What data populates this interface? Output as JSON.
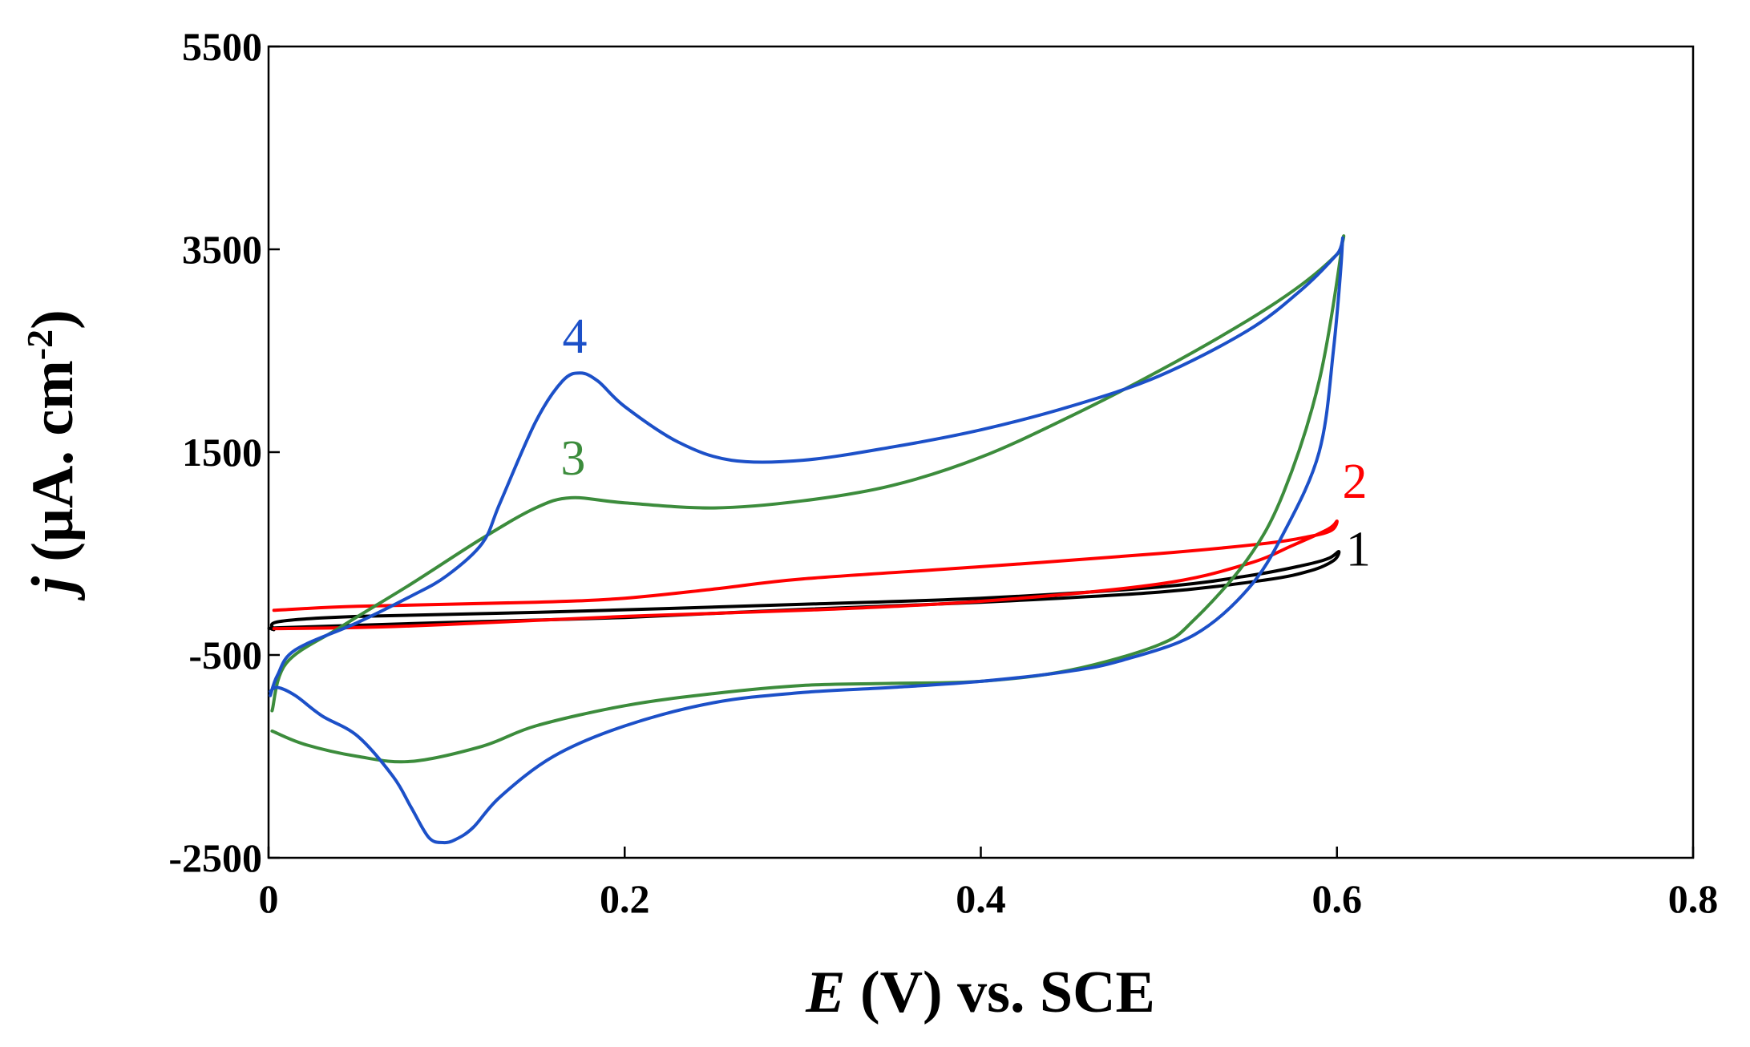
{
  "chart_data": {
    "type": "line",
    "title": "",
    "xlabel": {
      "var": "E",
      "rest": " (V) vs. SCE"
    },
    "ylabel": {
      "var": "j",
      "rest": " (μA. cm",
      "sup": "-2",
      "close": ")"
    },
    "xlim": [
      0,
      0.8
    ],
    "ylim": [
      -2500,
      5500
    ],
    "xticks": [
      0,
      0.2,
      0.4,
      0.6,
      0.8
    ],
    "xtick_labels": [
      "0",
      "0.2",
      "0.4",
      "0.6",
      "0.8"
    ],
    "yticks": [
      -2500,
      -500,
      1500,
      3500,
      5500
    ],
    "ytick_labels": [
      "-2500",
      "-500",
      "1500",
      "3500",
      "5500"
    ],
    "grid": false,
    "series": [
      {
        "name": "1",
        "color": "#000000",
        "x": [
          0.003,
          0.006,
          0.05,
          0.15,
          0.3,
          0.4,
          0.5,
          0.55,
          0.58,
          0.595,
          0.601,
          0.598,
          0.585,
          0.56,
          0.5,
          0.4,
          0.3,
          0.2,
          0.1,
          0.01,
          0.002,
          0.003
        ],
        "y": [
          -250,
          -170,
          -120,
          -80,
          0,
          60,
          170,
          280,
          380,
          450,
          520,
          430,
          330,
          240,
          120,
          20,
          -50,
          -130,
          -180,
          -230,
          -240,
          -250
        ]
      },
      {
        "name": "2",
        "color": "#ff0000",
        "x": [
          0.003,
          0.05,
          0.15,
          0.2,
          0.25,
          0.3,
          0.4,
          0.5,
          0.56,
          0.585,
          0.597,
          0.6,
          0.595,
          0.575,
          0.55,
          0.5,
          0.4,
          0.3,
          0.2,
          0.1,
          0.05,
          0.003
        ],
        "y": [
          -60,
          -20,
          20,
          60,
          150,
          250,
          370,
          500,
          600,
          670,
          730,
          820,
          740,
          580,
          400,
          200,
          30,
          -60,
          -120,
          -200,
          -230,
          -240
        ]
      },
      {
        "name": "3",
        "color": "#3c8c3c",
        "x": [
          0.002,
          0.01,
          0.04,
          0.08,
          0.12,
          0.15,
          0.17,
          0.2,
          0.25,
          0.3,
          0.35,
          0.4,
          0.45,
          0.5,
          0.55,
          0.58,
          0.6,
          0.603,
          0.59,
          0.57,
          0.55,
          0.52,
          0.5,
          0.45,
          0.4,
          0.35,
          0.3,
          0.25,
          0.2,
          0.15,
          0.12,
          0.08,
          0.05,
          0.02,
          0.002
        ],
        "y": [
          -1050,
          -580,
          -230,
          200,
          650,
          950,
          1050,
          1000,
          950,
          1020,
          1170,
          1450,
          1850,
          2300,
          2800,
          3150,
          3450,
          3550,
          2200,
          1100,
          450,
          -150,
          -400,
          -650,
          -760,
          -780,
          -800,
          -880,
          -1000,
          -1200,
          -1400,
          -1550,
          -1500,
          -1380,
          -1250
        ]
      },
      {
        "name": "4",
        "color": "#1c50c8",
        "x": [
          0.001,
          0.005,
          0.015,
          0.05,
          0.08,
          0.1,
          0.12,
          0.13,
          0.15,
          0.165,
          0.175,
          0.185,
          0.2,
          0.23,
          0.26,
          0.3,
          0.35,
          0.4,
          0.45,
          0.5,
          0.55,
          0.58,
          0.6,
          0.603,
          0.598,
          0.59,
          0.57,
          0.55,
          0.52,
          0.48,
          0.45,
          0.4,
          0.35,
          0.3,
          0.25,
          0.2,
          0.16,
          0.13,
          0.115,
          0.105,
          0.098,
          0.09,
          0.08,
          0.07,
          0.05,
          0.03,
          0.015,
          0.005,
          0.001
        ],
        "y": [
          -900,
          -700,
          -450,
          -180,
          80,
          280,
          600,
          1000,
          1800,
          2200,
          2280,
          2200,
          1950,
          1600,
          1420,
          1420,
          1550,
          1720,
          1950,
          2250,
          2700,
          3100,
          3450,
          3550,
          2500,
          1500,
          700,
          150,
          -300,
          -550,
          -660,
          -760,
          -820,
          -870,
          -970,
          -1200,
          -1500,
          -1900,
          -2200,
          -2320,
          -2350,
          -2300,
          -2000,
          -1700,
          -1300,
          -1100,
          -900,
          -820,
          -860
        ]
      }
    ],
    "annotations": [
      {
        "text": "1",
        "x": 0.612,
        "y": 380,
        "color": "#000000"
      },
      {
        "text": "2",
        "x": 0.61,
        "y": 1050,
        "color": "#ff0000"
      },
      {
        "text": "3",
        "x": 0.171,
        "y": 1280,
        "color": "#3c8c3c"
      },
      {
        "text": "4",
        "x": 0.172,
        "y": 2480,
        "color": "#1c50c8"
      }
    ]
  }
}
